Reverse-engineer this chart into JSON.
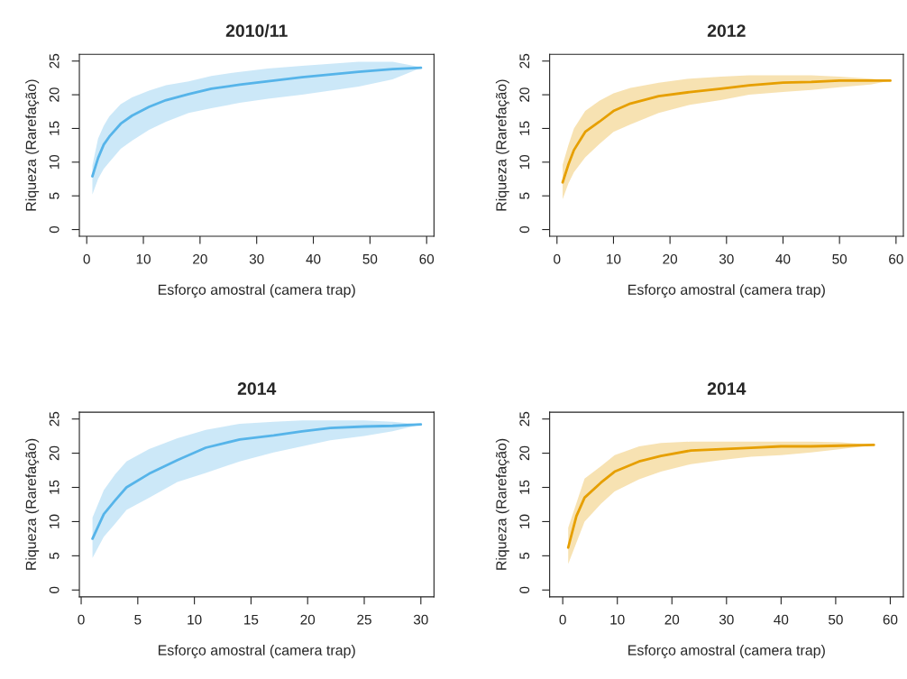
{
  "chart_data": [
    {
      "type": "line",
      "title": "2010/11",
      "xlabel": "Esforço amostral (camera trap)",
      "ylabel": "Riqueza (Rarefação)",
      "xlim": [
        -1.3,
        61.3
      ],
      "ylim": [
        -1,
        26
      ],
      "xticks": [
        0,
        10,
        20,
        30,
        40,
        50,
        60
      ],
      "yticks": [
        0,
        5,
        10,
        15,
        20,
        25
      ],
      "grid": false,
      "series": [
        {
          "color": "#56b4e9",
          "x": [
            1,
            2,
            3,
            4,
            6,
            8,
            11,
            14,
            18,
            22,
            27,
            32,
            38,
            43,
            48,
            54,
            59
          ],
          "values": [
            7.9,
            10.6,
            12.6,
            13.8,
            15.7,
            16.9,
            18.2,
            19.2,
            20.1,
            20.9,
            21.5,
            22.0,
            22.6,
            23.0,
            23.4,
            23.8,
            24.0
          ],
          "upper": [
            9.5,
            13.5,
            15.4,
            16.8,
            18.6,
            19.6,
            20.6,
            21.4,
            22.0,
            22.8,
            23.4,
            23.9,
            24.3,
            24.6,
            24.9,
            24.9,
            24.1
          ],
          "lower": [
            5.2,
            7.5,
            9.0,
            10.0,
            12.0,
            13.2,
            14.8,
            16.0,
            17.3,
            18.0,
            18.8,
            19.4,
            20.0,
            20.6,
            21.2,
            22.3,
            24.0
          ]
        }
      ]
    },
    {
      "type": "line",
      "title": "2012",
      "xlabel": "Esforço amostral (camera trap)",
      "ylabel": "Riqueza (Rarefação)",
      "xlim": [
        -1.3,
        61.3
      ],
      "ylim": [
        -1,
        26
      ],
      "xticks": [
        0,
        10,
        20,
        30,
        40,
        50,
        60
      ],
      "yticks": [
        0,
        5,
        10,
        15,
        20,
        25
      ],
      "grid": false,
      "series": [
        {
          "color": "#e69f00",
          "x": [
            1,
            2,
            3,
            5,
            7.5,
            10,
            13,
            18,
            23.5,
            29,
            34,
            40,
            45,
            50,
            55.5,
            59
          ],
          "values": [
            7.0,
            9.6,
            11.8,
            14.5,
            16.0,
            17.6,
            18.7,
            19.8,
            20.4,
            20.9,
            21.4,
            21.8,
            21.9,
            22.1,
            22.1,
            22.1
          ],
          "upper": [
            9.6,
            12.5,
            15.0,
            17.6,
            19.1,
            20.2,
            21.0,
            21.8,
            22.4,
            22.7,
            22.9,
            22.9,
            22.9,
            22.7,
            22.4,
            22.1
          ],
          "lower": [
            4.5,
            6.8,
            8.5,
            10.7,
            12.7,
            14.5,
            15.6,
            17.3,
            18.5,
            19.2,
            20.0,
            20.4,
            20.7,
            21.1,
            21.5,
            22.1
          ]
        }
      ]
    },
    {
      "type": "line",
      "title": "2014",
      "xlabel": "Esforço amostral (camera trap)",
      "ylabel": "Riqueza (Rarefação)",
      "xlim": [
        -0.16,
        31.16
      ],
      "ylim": [
        -1,
        26
      ],
      "xticks": [
        0,
        5,
        10,
        15,
        20,
        25,
        30
      ],
      "yticks": [
        0,
        5,
        10,
        15,
        20,
        25
      ],
      "grid": false,
      "series": [
        {
          "color": "#56b4e9",
          "x": [
            1,
            2,
            3,
            4,
            6,
            8.5,
            11,
            14,
            17,
            19.5,
            22,
            25,
            27.5,
            30
          ],
          "values": [
            7.5,
            11.1,
            13.1,
            15.0,
            17.0,
            19.0,
            20.8,
            22.0,
            22.6,
            23.2,
            23.7,
            23.9,
            24.0,
            24.2
          ],
          "upper": [
            10.6,
            14.6,
            16.9,
            18.8,
            20.6,
            22.2,
            23.4,
            24.3,
            24.6,
            24.8,
            24.8,
            24.8,
            24.6,
            24.2
          ],
          "lower": [
            4.7,
            7.8,
            9.7,
            11.7,
            13.5,
            15.8,
            17.1,
            18.8,
            20.1,
            21.0,
            21.9,
            22.5,
            23.2,
            24.2
          ]
        }
      ]
    },
    {
      "type": "line",
      "title": "2014",
      "xlabel": "Esforço amostral (camera trap)",
      "ylabel": "Riqueza (Rarefação)",
      "xlim": [
        -2.4,
        62.4
      ],
      "ylim": [
        -1,
        26
      ],
      "xticks": [
        0,
        10,
        20,
        30,
        40,
        50,
        60
      ],
      "yticks": [
        0,
        5,
        10,
        15,
        20,
        25
      ],
      "grid": false,
      "series": [
        {
          "color": "#e69f00",
          "x": [
            1,
            2.5,
            4,
            7,
            9.5,
            14,
            18,
            23.5,
            29,
            34.5,
            40,
            45.5,
            51,
            57
          ],
          "values": [
            6.2,
            10.8,
            13.5,
            15.7,
            17.3,
            18.8,
            19.6,
            20.4,
            20.6,
            20.8,
            21.0,
            21.0,
            21.1,
            21.2
          ],
          "upper": [
            9.1,
            12.7,
            16.3,
            18.1,
            19.7,
            21.0,
            21.5,
            21.7,
            21.7,
            21.7,
            21.7,
            21.7,
            21.6,
            21.2
          ],
          "lower": [
            3.8,
            6.9,
            10.0,
            12.6,
            14.4,
            16.2,
            17.3,
            18.4,
            19.0,
            19.5,
            19.7,
            20.1,
            20.6,
            21.2
          ]
        }
      ]
    }
  ]
}
